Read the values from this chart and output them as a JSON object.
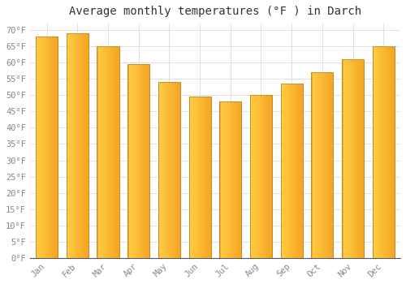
{
  "title": "Average monthly temperatures (°F ) in Darch",
  "months": [
    "Jan",
    "Feb",
    "Mar",
    "Apr",
    "May",
    "Jun",
    "Jul",
    "Aug",
    "Sep",
    "Oct",
    "Nov",
    "Dec"
  ],
  "values": [
    68,
    69,
    65,
    59.5,
    54,
    49.5,
    48,
    50,
    53.5,
    57,
    61,
    65
  ],
  "bar_color_left": "#FFCC44",
  "bar_color_right": "#F5A623",
  "bar_edge_color": "#C8882A",
  "background_color": "#FFFFFF",
  "grid_color": "#DDDDDD",
  "ylim": [
    0,
    72
  ],
  "yticks": [
    0,
    5,
    10,
    15,
    20,
    25,
    30,
    35,
    40,
    45,
    50,
    55,
    60,
    65,
    70
  ],
  "title_fontsize": 10,
  "tick_fontsize": 7.5,
  "tick_color": "#888888",
  "title_color": "#333333"
}
